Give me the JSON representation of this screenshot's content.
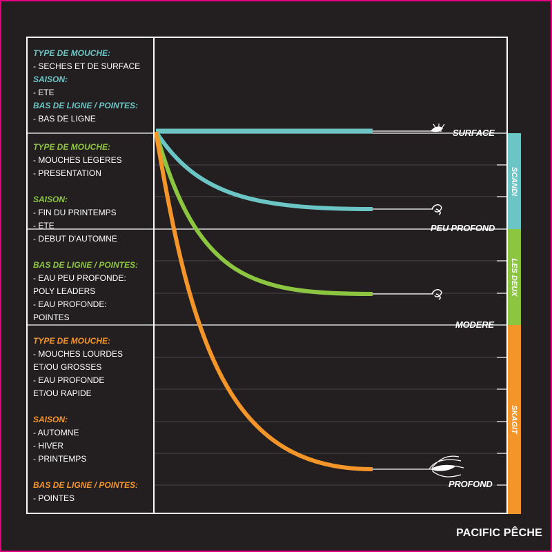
{
  "sections": [
    {
      "color": "#6cc5c5",
      "lines": [
        {
          "type": "heading",
          "text": "TYPE DE MOUCHE:"
        },
        {
          "type": "item",
          "text": "- SECHES ET DE SURFACE"
        },
        {
          "type": "heading",
          "text": "SAISON:"
        },
        {
          "type": "item",
          "text": "- ETE"
        },
        {
          "type": "heading",
          "text": "BAS DE LIGNE / POINTES:"
        },
        {
          "type": "item",
          "text": "- BAS DE LIGNE"
        }
      ]
    },
    {
      "color": "#8cc540",
      "lines": [
        {
          "type": "heading",
          "text": "TYPE DE MOUCHE:"
        },
        {
          "type": "item",
          "text": "- MOUCHES LEGERES"
        },
        {
          "type": "item",
          "text": "- PRESENTATION"
        },
        {
          "type": "gap",
          "text": ""
        },
        {
          "type": "heading",
          "text": "SAISON:"
        },
        {
          "type": "item",
          "text": "- FIN DU PRINTEMPS"
        },
        {
          "type": "item",
          "text": "- ETE"
        },
        {
          "type": "item",
          "text": "- DEBUT D'AUTOMNE"
        },
        {
          "type": "gap",
          "text": ""
        },
        {
          "type": "heading",
          "text": "BAS DE LIGNE / POINTES:"
        },
        {
          "type": "item",
          "text": "- EAU PEU PROFONDE:"
        },
        {
          "type": "item",
          "text": "POLY LEADERS"
        },
        {
          "type": "item",
          "text": "- EAU PROFONDE:"
        },
        {
          "type": "item",
          "text": "POINTES"
        }
      ]
    },
    {
      "color": "#f4952a",
      "lines": [
        {
          "type": "heading",
          "text": "TYPE DE MOUCHE:"
        },
        {
          "type": "item",
          "text": "- MOUCHES LOURDES"
        },
        {
          "type": "item",
          "text": "ET/OU GROSSES"
        },
        {
          "type": "item",
          "text": "- EAU PROFONDE"
        },
        {
          "type": "item",
          "text": "ET/OU RAPIDE"
        },
        {
          "type": "gap",
          "text": ""
        },
        {
          "type": "heading",
          "text": "SAISON:"
        },
        {
          "type": "item",
          "text": "- AUTOMNE"
        },
        {
          "type": "item",
          "text": "- HIVER"
        },
        {
          "type": "item",
          "text": "- PRINTEMPS"
        },
        {
          "type": "gap",
          "text": ""
        },
        {
          "type": "heading",
          "text": "BAS DE LIGNE / POINTES:"
        },
        {
          "type": "item",
          "text": "- POINTES"
        }
      ]
    }
  ],
  "depth_labels": {
    "surface": "SURFACE",
    "peu_profond": "PEU PROFOND",
    "modere": "MODERE",
    "profond": "PROFOND"
  },
  "line_types": [
    {
      "label": "SCANDI",
      "color": "#6cc5c5"
    },
    {
      "label": "LES DEUX",
      "color": "#8cc540"
    },
    {
      "label": "SKAGIT",
      "color": "#f4952a"
    }
  ],
  "lines": [
    {
      "color": "#6cc5c5",
      "depth": "surface"
    },
    {
      "color": "#6cc5c5",
      "depth": "peu_profond"
    },
    {
      "color": "#8cc540",
      "depth": "modere"
    },
    {
      "color": "#f4952a",
      "depth": "profond"
    }
  ],
  "brand": "PACIFIC PÊCHE",
  "colors": {
    "background": "#231f20",
    "border": "#e6007e",
    "scandi": "#6cc5c5",
    "both": "#8cc540",
    "skagit": "#f4952a"
  }
}
